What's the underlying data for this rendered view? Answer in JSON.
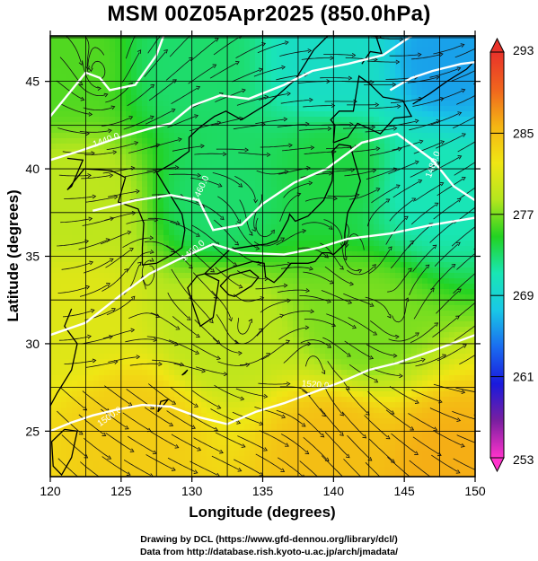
{
  "title": "MSM 00Z05Apr2025 (850.0hPa)",
  "credits": {
    "line1": "Drawing by DCL (https://www.gfd-dennou.org/library/dcl/)",
    "line2": "Data from http://database.rish.kyoto-u.ac.jp/arch/jmadata/"
  },
  "chart_data": {
    "type": "heatmap",
    "title": "MSM 00Z05Apr2025 (850.0hPa)",
    "xlabel": "Longitude (degrees)",
    "ylabel": "Latitude  (degrees)",
    "xlim": [
      120,
      150
    ],
    "ylim": [
      22.4,
      47.6
    ],
    "xticks": [
      120,
      125,
      130,
      135,
      140,
      145,
      150
    ],
    "yticks": [
      25,
      30,
      35,
      40,
      45
    ],
    "grid": true,
    "colorbar": {
      "min": 253,
      "max": 293,
      "ticks": [
        253,
        261,
        269,
        277,
        285,
        293
      ],
      "colors": [
        "#ff33cc",
        "#7a1fa0",
        "#1a1adc",
        "#1a6cf0",
        "#19c8e6",
        "#19e6b4",
        "#22d222",
        "#b4e61e",
        "#f0e614",
        "#f5b414",
        "#f0641e",
        "#e8322a"
      ]
    },
    "temperature_samples": [
      {
        "lon": 121,
        "lat": 46,
        "temp": 276
      },
      {
        "lon": 130,
        "lat": 46,
        "temp": 273
      },
      {
        "lon": 140,
        "lat": 46,
        "temp": 270
      },
      {
        "lon": 148,
        "lat": 46,
        "temp": 266
      },
      {
        "lon": 122,
        "lat": 38,
        "temp": 279
      },
      {
        "lon": 132,
        "lat": 38,
        "temp": 273
      },
      {
        "lon": 140,
        "lat": 40,
        "temp": 274
      },
      {
        "lon": 147,
        "lat": 39,
        "temp": 271
      },
      {
        "lon": 122,
        "lat": 32,
        "temp": 281
      },
      {
        "lon": 132,
        "lat": 31,
        "temp": 279
      },
      {
        "lon": 142,
        "lat": 31,
        "temp": 277
      },
      {
        "lon": 126,
        "lat": 25,
        "temp": 284
      },
      {
        "lon": 140,
        "lat": 24,
        "temp": 285
      },
      {
        "lon": 148,
        "lat": 23,
        "temp": 286
      }
    ],
    "contour_labels": [
      {
        "text": "1440.0",
        "lon": 124,
        "lat": 41.5,
        "angle": -20
      },
      {
        "text": "1460.0",
        "lon": 130.8,
        "lat": 38.8,
        "angle": -65
      },
      {
        "text": "1480.0",
        "lon": 130.2,
        "lat": 35.2,
        "angle": -40
      },
      {
        "text": "1500.0",
        "lon": 124.3,
        "lat": 25.7,
        "angle": -35
      },
      {
        "text": "1520.0",
        "lon": 138.7,
        "lat": 27.5,
        "angle": 5
      },
      {
        "text": "1480.0",
        "lon": 147.2,
        "lat": 40.2,
        "angle": -70
      }
    ]
  }
}
